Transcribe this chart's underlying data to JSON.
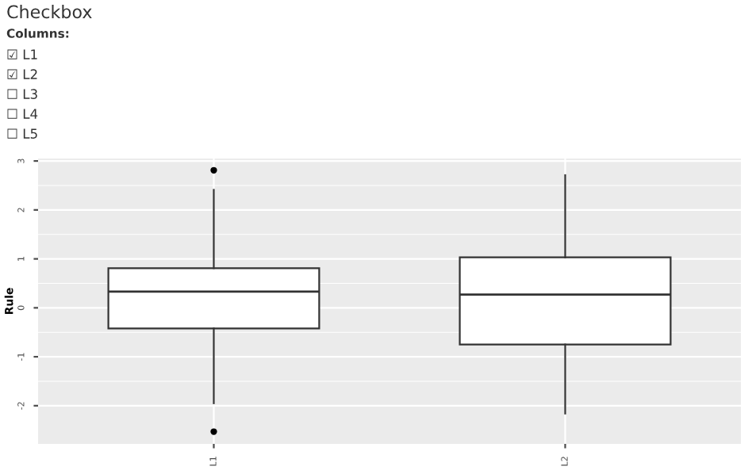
{
  "chart_data": {
    "type": "box",
    "title": "Checkbox",
    "subtitle": "Columns:",
    "annotations": [
      "☑ L1",
      "☑ L2",
      "☐ L3",
      "☐ L4",
      "☐ L5"
    ],
    "ylabel": "Rule",
    "categories": [
      "L1",
      "L2"
    ],
    "boxes": [
      {
        "low": -1.95,
        "q1": -0.42,
        "median": 0.33,
        "q3": 0.81,
        "high": 2.41,
        "outliers": [
          2.81,
          -2.53
        ]
      },
      {
        "low": -2.16,
        "q1": -0.75,
        "median": 0.27,
        "q3": 1.03,
        "high": 2.71
      }
    ],
    "ylim": [
      -2.78,
      3.05
    ],
    "yticks": [
      -2,
      -1,
      0,
      1,
      2,
      3
    ],
    "grid": true
  }
}
